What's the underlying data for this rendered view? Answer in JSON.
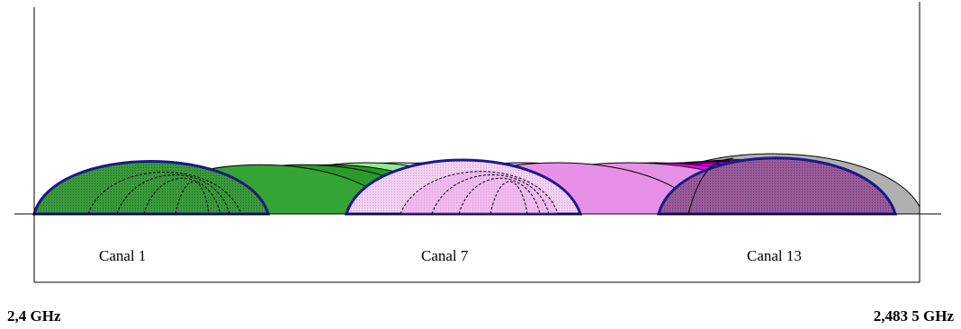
{
  "channels": [
    {
      "label": "Canal 1",
      "number": 1
    },
    {
      "label": "Canal 7",
      "number": 7
    },
    {
      "label": "Canal 13",
      "number": 13
    }
  ],
  "band": {
    "start_label": "2,4 GHz",
    "end_label": "2,483 5 GHz"
  },
  "colors": {
    "outline_highlight": "#1a1a8c",
    "outline_default": "#000000",
    "green_dark": "#2f8f2f",
    "green_mid": "#1e9e1e",
    "green_light": "#90ee90",
    "green_pale": "#ccf5cc",
    "pink_pale": "#f5d0f5",
    "pink_mid": "#e58fe5",
    "magenta": "#ee00ee",
    "magenta_dark": "#cc00cc",
    "purple": "#9900cc",
    "purple_dark": "#800080",
    "mauve": "#9a5a9a",
    "grey": "#b0b0b0"
  }
}
